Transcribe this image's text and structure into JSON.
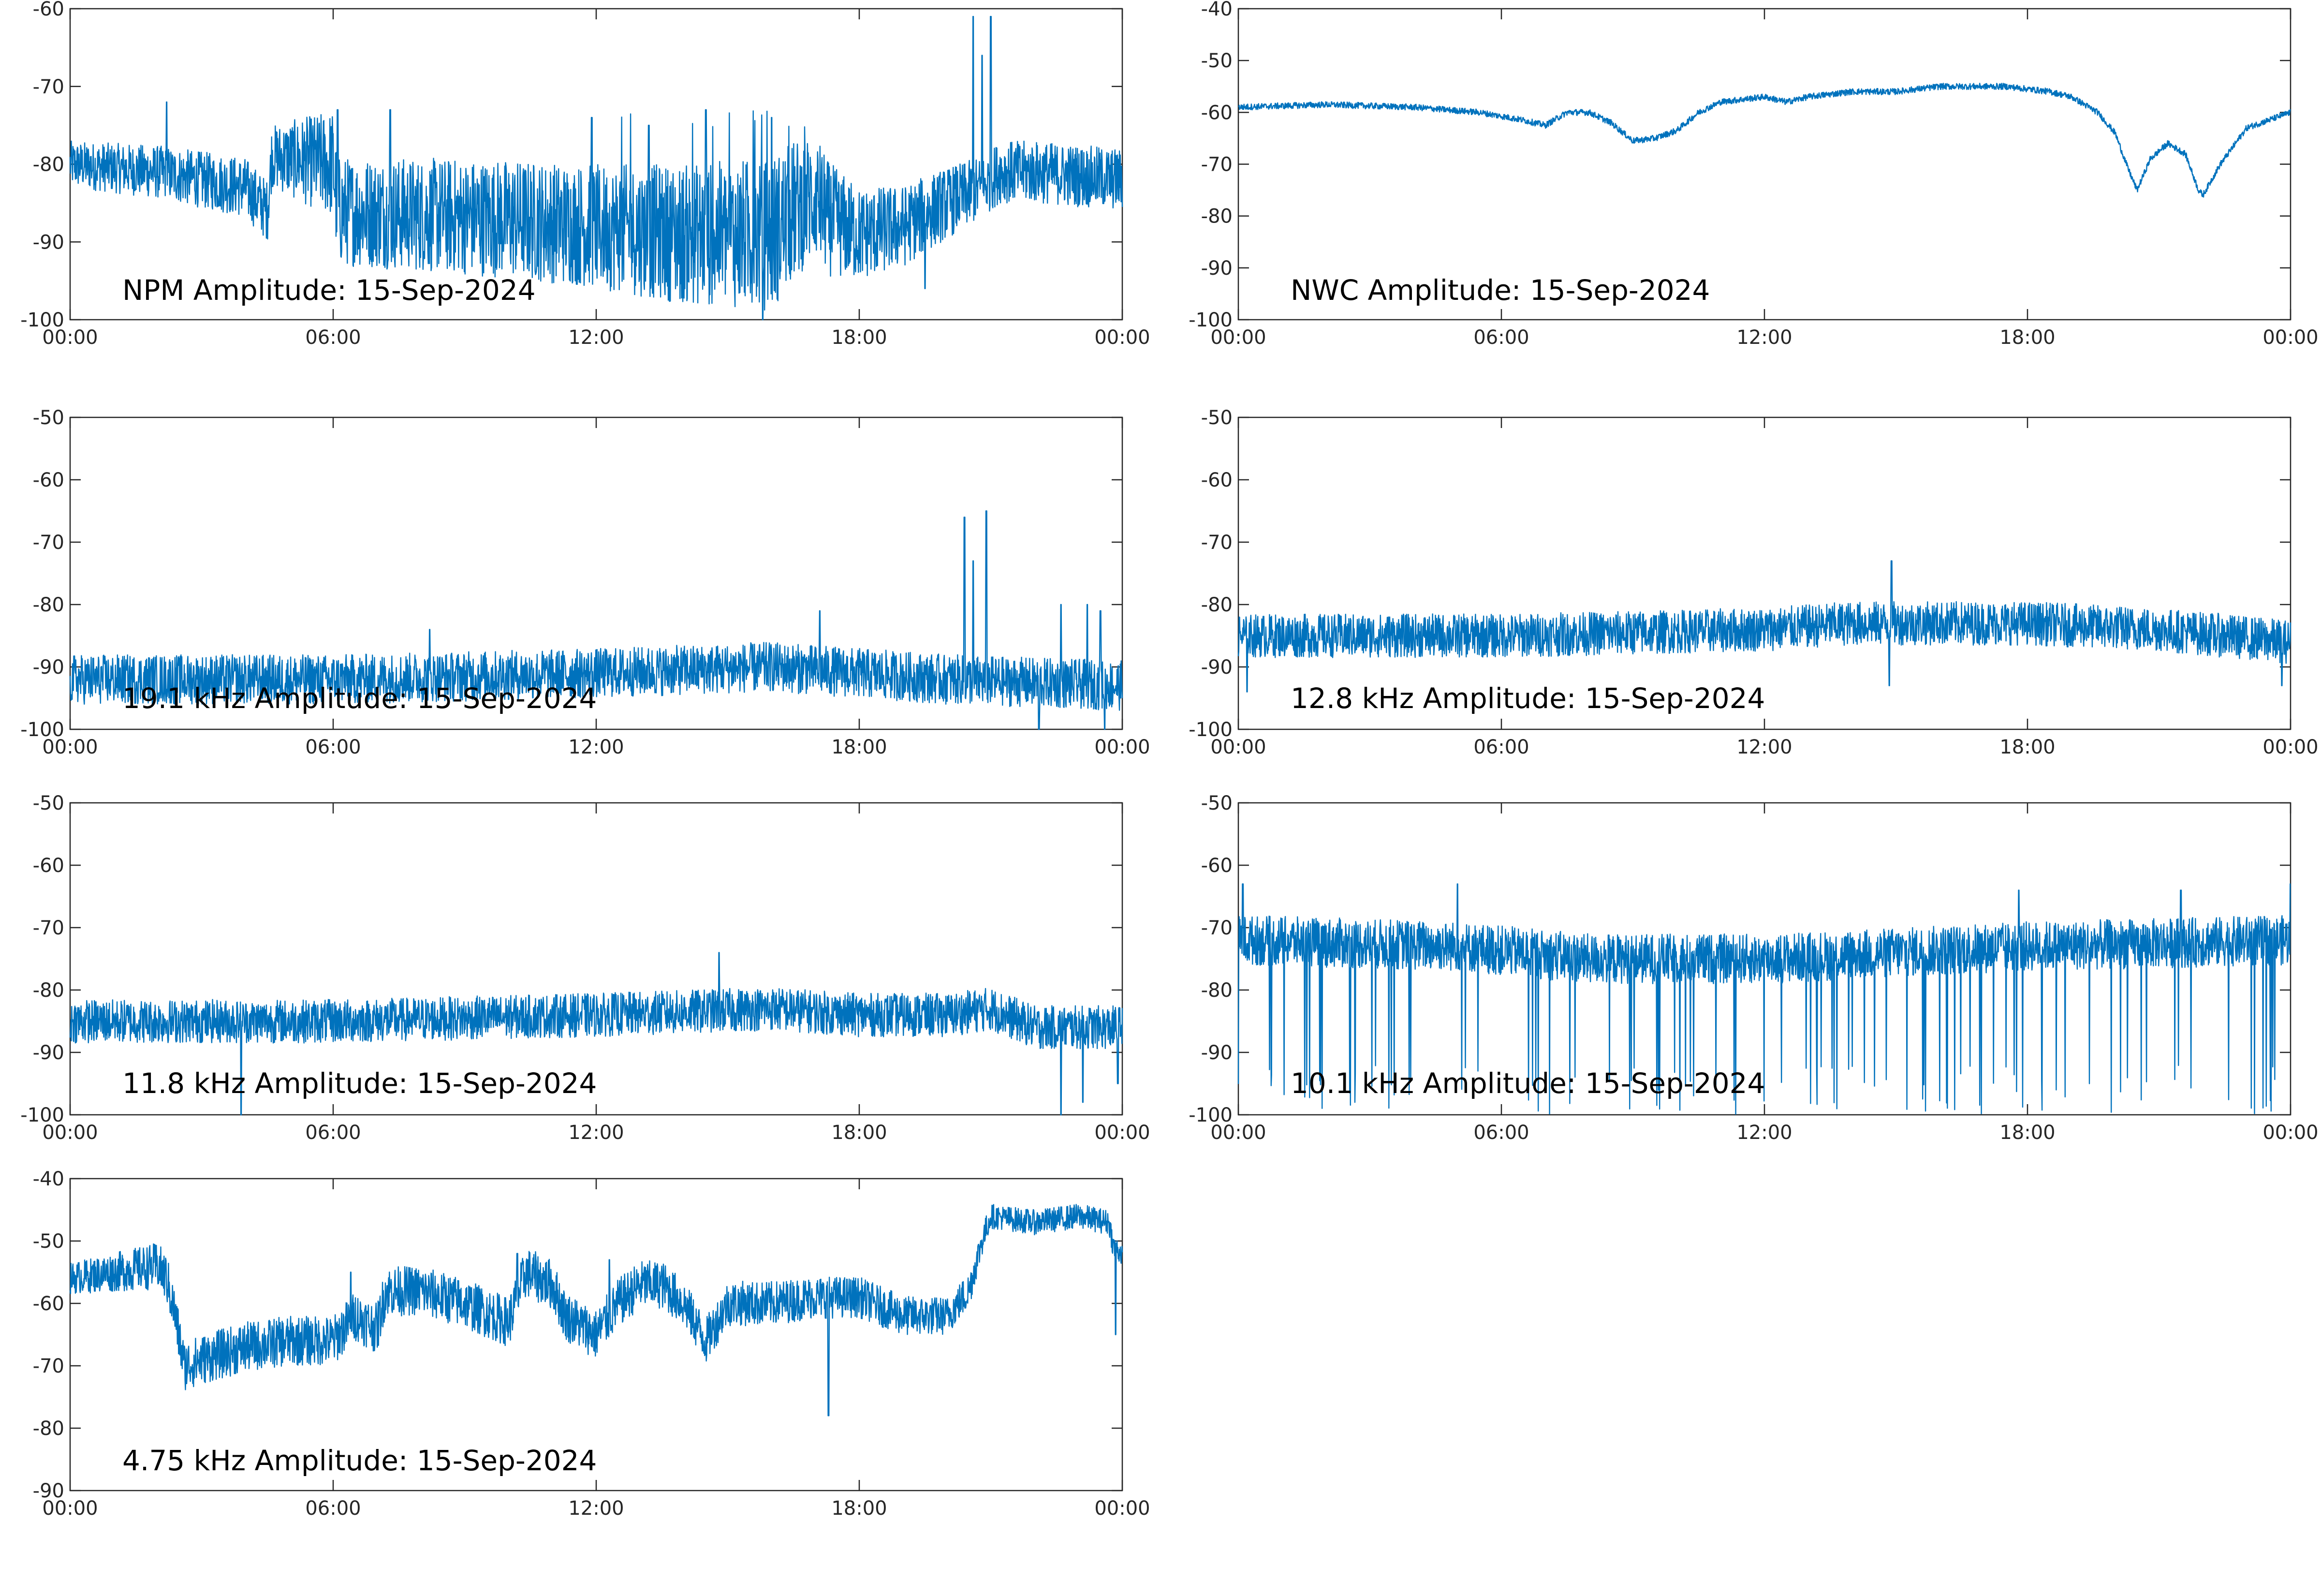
{
  "figure": {
    "line_color": "#0072BD"
  },
  "chart_data": [
    {
      "type": "line",
      "title": "NPM Amplitude: 15-Sep-2024",
      "xlabel": "",
      "ylabel": "",
      "x_ticks": [
        "00:00",
        "06:00",
        "12:00",
        "18:00",
        "00:00"
      ],
      "xlim": [
        0,
        24
      ],
      "ylim": [
        -100,
        -60
      ],
      "y_ticks": [
        -60,
        -70,
        -80,
        -90,
        -100
      ],
      "y_tick_labels": [
        "-60",
        "-70",
        "-80",
        "-90",
        "-100"
      ],
      "series": [
        {
          "baseline": [
            [
              0,
              -80
            ],
            [
              2,
              -81
            ],
            [
              4,
              -83
            ],
            [
              4.5,
              -86
            ],
            [
              4.6,
              -79
            ],
            [
              6,
              -80
            ],
            [
              6.1,
              -86
            ],
            [
              10,
              -87
            ],
            [
              12,
              -88
            ],
            [
              14,
              -89
            ],
            [
              16,
              -89
            ],
            [
              16.5,
              -86
            ],
            [
              17,
              -84
            ],
            [
              17.3,
              -87
            ],
            [
              18,
              -89
            ],
            [
              19,
              -88
            ],
            [
              20,
              -85
            ],
            [
              20.8,
              -83
            ],
            [
              21.2,
              -81
            ],
            [
              22,
              -81
            ],
            [
              24,
              -82
            ]
          ],
          "band": [
            [
              0,
              3
            ],
            [
              4.6,
              4
            ],
            [
              6,
              7
            ],
            [
              12,
              8
            ],
            [
              16,
              10
            ],
            [
              18,
              6
            ],
            [
              20.8,
              4
            ],
            [
              24,
              4
            ]
          ],
          "spikes": [
            [
              2.2,
              -72
            ],
            [
              6.1,
              -73
            ],
            [
              7.3,
              -73
            ],
            [
              11.9,
              -74
            ],
            [
              13.2,
              -75
            ],
            [
              14.5,
              -73
            ],
            [
              16,
              -74
            ],
            [
              20.6,
              -61
            ],
            [
              20.8,
              -66
            ],
            [
              21,
              -61
            ],
            [
              15.8,
              -100
            ],
            [
              19.5,
              -96
            ]
          ]
        }
      ]
    },
    {
      "type": "line",
      "title": "NWC Amplitude: 15-Sep-2024",
      "xlabel": "",
      "ylabel": "",
      "x_ticks": [
        "00:00",
        "06:00",
        "12:00",
        "18:00",
        "00:00"
      ],
      "xlim": [
        0,
        24
      ],
      "ylim": [
        -100,
        -40
      ],
      "y_ticks": [
        -40,
        -50,
        -60,
        -70,
        -80,
        -90,
        -100
      ],
      "y_tick_labels": [
        "-40",
        "-50",
        "-60",
        "-70",
        "-80",
        "-90",
        "-100"
      ],
      "series": [
        {
          "baseline": [
            [
              0,
              -59
            ],
            [
              2,
              -58.5
            ],
            [
              4,
              -59
            ],
            [
              5.5,
              -60
            ],
            [
              6.5,
              -61.5
            ],
            [
              7,
              -62.5
            ],
            [
              7.5,
              -60
            ],
            [
              8,
              -60
            ],
            [
              8.5,
              -62
            ],
            [
              9,
              -65.5
            ],
            [
              9.5,
              -65
            ],
            [
              10,
              -63.5
            ],
            [
              10.5,
              -60
            ],
            [
              11,
              -58
            ],
            [
              12,
              -57
            ],
            [
              12.5,
              -58
            ],
            [
              13,
              -57
            ],
            [
              14,
              -56
            ],
            [
              15,
              -56
            ],
            [
              16,
              -55
            ],
            [
              17,
              -55
            ],
            [
              17.5,
              -55
            ],
            [
              18,
              -55.5
            ],
            [
              18.5,
              -56
            ],
            [
              19,
              -57
            ],
            [
              19.6,
              -60
            ],
            [
              20,
              -64
            ],
            [
              20.3,
              -71
            ],
            [
              20.5,
              -75
            ],
            [
              20.8,
              -69
            ],
            [
              21.2,
              -66
            ],
            [
              21.6,
              -68
            ],
            [
              21.9,
              -75
            ],
            [
              22,
              -76
            ],
            [
              22.4,
              -70
            ],
            [
              23,
              -63
            ],
            [
              24,
              -60
            ]
          ],
          "band": [
            [
              0,
              0.6
            ],
            [
              24,
              0.6
            ]
          ],
          "spikes": []
        }
      ]
    },
    {
      "type": "line",
      "title": "19.1 kHz Amplitude: 15-Sep-2024",
      "xlabel": "",
      "ylabel": "",
      "x_ticks": [
        "00:00",
        "06:00",
        "12:00",
        "18:00",
        "00:00"
      ],
      "xlim": [
        0,
        24
      ],
      "ylim": [
        -100,
        -50
      ],
      "y_ticks": [
        -50,
        -60,
        -70,
        -80,
        -90,
        -100
      ],
      "y_tick_labels": [
        "-50",
        "-60",
        "-70",
        "-80",
        "-90",
        "-100"
      ],
      "series": [
        {
          "baseline": [
            [
              0,
              -92
            ],
            [
              6,
              -92
            ],
            [
              12,
              -91
            ],
            [
              16,
              -90
            ],
            [
              18,
              -91
            ],
            [
              20,
              -92
            ],
            [
              24,
              -93
            ]
          ],
          "band": [
            [
              0,
              4
            ],
            [
              24,
              4
            ]
          ],
          "spikes": [
            [
              20.4,
              -66
            ],
            [
              20.6,
              -73
            ],
            [
              20.9,
              -65
            ],
            [
              22.6,
              -80
            ],
            [
              23.2,
              -80
            ],
            [
              23.5,
              -81
            ],
            [
              17.1,
              -81
            ],
            [
              8.2,
              -84
            ],
            [
              22.1,
              -100
            ],
            [
              23.6,
              -100
            ]
          ]
        }
      ]
    },
    {
      "type": "line",
      "title": "12.8 kHz Amplitude: 15-Sep-2024",
      "xlabel": "",
      "ylabel": "",
      "x_ticks": [
        "00:00",
        "06:00",
        "12:00",
        "18:00",
        "00:00"
      ],
      "xlim": [
        0,
        24
      ],
      "ylim": [
        -100,
        -50
      ],
      "y_ticks": [
        -50,
        -60,
        -70,
        -80,
        -90,
        -100
      ],
      "y_tick_labels": [
        "-50",
        "-60",
        "-70",
        "-80",
        "-90",
        "-100"
      ],
      "series": [
        {
          "baseline": [
            [
              0,
              -85
            ],
            [
              6,
              -85
            ],
            [
              12,
              -84
            ],
            [
              14,
              -83
            ],
            [
              18,
              -83
            ],
            [
              21,
              -84
            ],
            [
              24,
              -86
            ]
          ],
          "band": [
            [
              0,
              3.5
            ],
            [
              24,
              3.5
            ]
          ],
          "spikes": [
            [
              14.9,
              -73
            ],
            [
              14.85,
              -93
            ],
            [
              0.2,
              -94
            ],
            [
              23.8,
              -93
            ]
          ]
        }
      ]
    },
    {
      "type": "line",
      "title": "11.8 kHz Amplitude: 15-Sep-2024",
      "xlabel": "",
      "ylabel": "",
      "x_ticks": [
        "00:00",
        "06:00",
        "12:00",
        "18:00",
        "00:00"
      ],
      "xlim": [
        0,
        24
      ],
      "ylim": [
        -100,
        -50
      ],
      "y_ticks": [
        -50,
        -60,
        -70,
        -80,
        -90,
        -100
      ],
      "y_tick_labels": [
        "-50",
        "-60",
        "-70",
        "-80",
        "-90",
        "-100"
      ],
      "series": [
        {
          "baseline": [
            [
              0,
              -85
            ],
            [
              6,
              -85
            ],
            [
              12,
              -84
            ],
            [
              16,
              -83
            ],
            [
              18,
              -84
            ],
            [
              20,
              -84
            ],
            [
              21,
              -83
            ],
            [
              22,
              -86
            ],
            [
              24,
              -86
            ]
          ],
          "band": [
            [
              0,
              3.5
            ],
            [
              24,
              3.5
            ]
          ],
          "spikes": [
            [
              3.9,
              -100
            ],
            [
              14.8,
              -74
            ],
            [
              22.6,
              -100
            ],
            [
              23.1,
              -98
            ],
            [
              23.9,
              -95
            ]
          ]
        }
      ]
    },
    {
      "type": "line",
      "title": "10.1 kHz Amplitude: 15-Sep-2024",
      "xlabel": "",
      "ylabel": "",
      "x_ticks": [
        "00:00",
        "06:00",
        "12:00",
        "18:00",
        "00:00"
      ],
      "xlim": [
        0,
        24
      ],
      "ylim": [
        -100,
        -50
      ],
      "y_ticks": [
        -50,
        -60,
        -70,
        -80,
        -90,
        -100
      ],
      "y_tick_labels": [
        "-50",
        "-60",
        "-70",
        "-80",
        "-90",
        "-100"
      ],
      "series": [
        {
          "baseline": [
            [
              0,
              -72
            ],
            [
              5,
              -73
            ],
            [
              8,
              -75
            ],
            [
              12,
              -75
            ],
            [
              18,
              -73
            ],
            [
              24,
              -72
            ]
          ],
          "band": [
            [
              0,
              4
            ],
            [
              24,
              4
            ]
          ],
          "spikes": [
            [
              0.1,
              -63
            ],
            [
              24,
              -63
            ],
            [
              5,
              -63
            ],
            [
              17.8,
              -64
            ],
            [
              21.5,
              -64
            ]
          ]
        }
      ]
    },
    {
      "type": "line",
      "title": "4.75 kHz Amplitude: 15-Sep-2024",
      "xlabel": "",
      "ylabel": "",
      "x_ticks": [
        "00:00",
        "06:00",
        "12:00",
        "18:00",
        "00:00"
      ],
      "xlim": [
        0,
        24
      ],
      "ylim": [
        -90,
        -40
      ],
      "y_ticks": [
        -40,
        -50,
        -60,
        -70,
        -80,
        -90
      ],
      "y_tick_labels": [
        "-40",
        "-50",
        "-60",
        "-70",
        "-80",
        "-90"
      ],
      "series": [
        {
          "baseline": [
            [
              0,
              -56
            ],
            [
              1,
              -55
            ],
            [
              2,
              -54
            ],
            [
              2.2,
              -56
            ],
            [
              2.4,
              -62
            ],
            [
              2.6,
              -70
            ],
            [
              3,
              -69
            ],
            [
              4,
              -67
            ],
            [
              5,
              -66
            ],
            [
              6,
              -66
            ],
            [
              6.5,
              -62
            ],
            [
              7,
              -64
            ],
            [
              7.2,
              -58
            ],
            [
              8,
              -58
            ],
            [
              9,
              -60
            ],
            [
              10,
              -63
            ],
            [
              10.4,
              -55
            ],
            [
              11,
              -57
            ],
            [
              11.3,
              -62
            ],
            [
              12,
              -65
            ],
            [
              12.5,
              -60
            ],
            [
              13,
              -57
            ],
            [
              13.5,
              -57
            ],
            [
              14,
              -60
            ],
            [
              14.5,
              -66
            ],
            [
              15,
              -60
            ],
            [
              16,
              -60
            ],
            [
              17,
              -59
            ],
            [
              18,
              -59
            ],
            [
              19,
              -62
            ],
            [
              20,
              -62
            ],
            [
              20.5,
              -58
            ],
            [
              20.8,
              -50
            ],
            [
              21,
              -46
            ],
            [
              22,
              -47
            ],
            [
              23,
              -46
            ],
            [
              23.7,
              -47
            ],
            [
              23.8,
              -51
            ],
            [
              24,
              -52
            ]
          ],
          "band": [
            [
              0,
              2.5
            ],
            [
              2.4,
              4
            ],
            [
              7,
              4
            ],
            [
              12,
              4
            ],
            [
              20.5,
              3
            ],
            [
              21,
              2
            ],
            [
              24,
              2
            ]
          ],
          "spikes": [
            [
              6.4,
              -55
            ],
            [
              10.2,
              -52
            ],
            [
              12.3,
              -53
            ],
            [
              17.3,
              -78
            ],
            [
              23.85,
              -65
            ]
          ]
        }
      ]
    }
  ]
}
